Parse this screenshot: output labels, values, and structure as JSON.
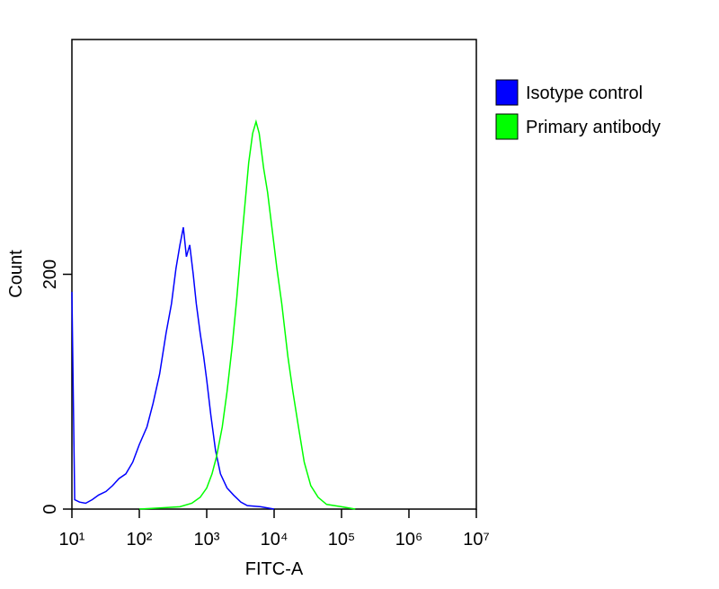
{
  "chart_data": {
    "type": "line",
    "xlabel": "FITC-A",
    "ylabel": "Count",
    "log_x": true,
    "xlim": [
      10,
      10000000
    ],
    "ylim": [
      0,
      400
    ],
    "xticks": [
      {
        "value": 10,
        "label": "10¹"
      },
      {
        "value": 100,
        "label": "10²"
      },
      {
        "value": 1000,
        "label": "10³"
      },
      {
        "value": 10000,
        "label": "10⁴"
      },
      {
        "value": 100000,
        "label": "10⁵"
      },
      {
        "value": 1000000,
        "label": "10⁶"
      },
      {
        "value": 10000000,
        "label": "10⁷"
      }
    ],
    "yticks": [
      0,
      200
    ],
    "legend": "right",
    "series": [
      {
        "name": "Isotype control",
        "color": "#0000ff",
        "x": [
          10,
          11,
          13,
          16,
          20,
          25,
          32,
          40,
          50,
          63,
          80,
          100,
          130,
          160,
          200,
          250,
          300,
          350,
          400,
          450,
          500,
          560,
          630,
          700,
          800,
          900,
          1000,
          1150,
          1350,
          1600,
          2000,
          2500,
          3200,
          4000,
          6300,
          10000
        ],
        "values": [
          185,
          8,
          6,
          5,
          8,
          12,
          15,
          20,
          26,
          30,
          40,
          55,
          70,
          90,
          115,
          150,
          175,
          205,
          225,
          240,
          215,
          225,
          200,
          175,
          150,
          130,
          110,
          80,
          50,
          30,
          18,
          12,
          6,
          3,
          2,
          0
        ]
      },
      {
        "name": "Primary antibody",
        "color": "#00ff00",
        "x": [
          100,
          200,
          400,
          600,
          800,
          1000,
          1200,
          1400,
          1700,
          2000,
          2400,
          2800,
          3200,
          3700,
          4200,
          4800,
          5400,
          6000,
          7000,
          8000,
          9500,
          11000,
          13000,
          16000,
          19000,
          23000,
          28000,
          35000,
          45000,
          60000,
          100000,
          160000
        ],
        "values": [
          0,
          1,
          2,
          5,
          10,
          18,
          30,
          45,
          70,
          100,
          140,
          180,
          220,
          260,
          295,
          320,
          330,
          320,
          290,
          270,
          235,
          205,
          175,
          130,
          100,
          70,
          40,
          20,
          10,
          4,
          2,
          0
        ]
      }
    ]
  }
}
